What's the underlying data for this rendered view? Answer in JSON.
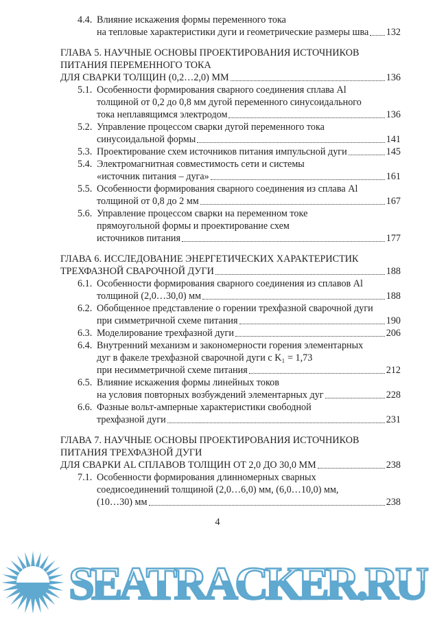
{
  "toc": [
    {
      "type": "entry",
      "num": "4.4.",
      "lines": [
        "Влияние искажения формы переменного тока",
        "на тепловые характеристики дуги и геометрические размеры шва"
      ],
      "page": "132"
    },
    {
      "type": "chapter",
      "lines": [
        "ГЛАВА 5. НАУЧНЫЕ ОСНОВЫ ПРОЕКТИРОВАНИЯ ИСТОЧНИКОВ",
        "ПИТАНИЯ ПЕРЕМЕННОГО ТОКА",
        "ДЛЯ СВАРКИ ТОЛЩИН (0,2…2,0) ММ"
      ],
      "page": "136"
    },
    {
      "type": "entry",
      "num": "5.1.",
      "lines": [
        "Особенности формирования сварного соединения сплава Al",
        "толщиной от 0,2 до 0,8 мм дугой переменного синусоидального",
        "тока неплавящимся электродом"
      ],
      "page": "136"
    },
    {
      "type": "entry",
      "num": "5.2.",
      "lines": [
        "Управление процессом сварки дугой переменного тока",
        "синусоидальной формы"
      ],
      "page": "141"
    },
    {
      "type": "entry",
      "num": "5.3.",
      "lines": [
        "Проектирование схем источников питания импульсной дуги"
      ],
      "page": "145"
    },
    {
      "type": "entry",
      "num": "5.4.",
      "lines": [
        "Электромагнитная совместимость сети и системы",
        "«источник питания – дуга»"
      ],
      "page": "161"
    },
    {
      "type": "entry",
      "num": "5.5.",
      "lines": [
        "Особенности формирования сварного соединения из сплава Al",
        "толщиной от 0,8 до 2 мм"
      ],
      "page": "167"
    },
    {
      "type": "entry",
      "num": "5.6.",
      "lines": [
        "Управление процессом сварки на переменном токе",
        "прямоугольной формы и проектирование схем",
        "источников питания"
      ],
      "page": "177"
    },
    {
      "type": "chapter",
      "lines": [
        "ГЛАВА 6. ИССЛЕДОВАНИЕ ЭНЕРГЕТИЧЕСКИХ ХАРАКТЕРИСТИК",
        "ТРЕХФАЗНОЙ СВАРОЧНОЙ ДУГИ"
      ],
      "page": "188"
    },
    {
      "type": "entry",
      "num": "6.1.",
      "lines": [
        "Особенности формирования сварного соединения из сплавов Al",
        "толщиной (2,0…30,0) мм"
      ],
      "page": "188"
    },
    {
      "type": "entry",
      "num": "6.2.",
      "lines": [
        "Обобщенное представление о горении трехфазной сварочной дуги",
        "при симметричной схеме питания"
      ],
      "page": "190"
    },
    {
      "type": "entry",
      "num": "6.3.",
      "lines": [
        "Моделирование трехфазной дуги"
      ],
      "page": "206"
    },
    {
      "type": "entry",
      "num": "6.4.",
      "lines": [
        "Внутренний механизм и закономерности горения элементарных",
        "дуг в факеле трехфазной сварочной дуги с K₁ = 1,73",
        "при несимметричной схеме питания"
      ],
      "page": "212"
    },
    {
      "type": "entry",
      "num": "6.5.",
      "lines": [
        "Влияние искажения формы линейных токов",
        "на условия повторных возбуждений элементарных дуг"
      ],
      "page": "228"
    },
    {
      "type": "entry",
      "num": "6.6.",
      "lines": [
        "Фазные вольт-амперные характеристики свободной",
        "трехфазной дуги"
      ],
      "page": "231"
    },
    {
      "type": "chapter",
      "lines": [
        "ГЛАВА 7. НАУЧНЫЕ ОСНОВЫ ПРОЕКТИРОВАНИЯ ИСТОЧНИКОВ",
        "ПИТАНИЯ ТРЕХФАЗНОЙ ДУГИ",
        "ДЛЯ СВАРКИ AL СПЛАВОВ ТОЛЩИН ОТ 2,0 ДО 30,0 ММ"
      ],
      "page": "238"
    },
    {
      "type": "entry",
      "num": "7.1.",
      "lines": [
        "Особенности формирования длинномерных сварных",
        "соедисоединений толщиной (2,0…6,0) мм, (6,0…10,0) мм,",
        "(10…30) мм"
      ],
      "page": "238"
    }
  ],
  "page_number": "4",
  "watermark": {
    "text": "SEATRACKER.RU",
    "color": "#5fa8cf"
  }
}
